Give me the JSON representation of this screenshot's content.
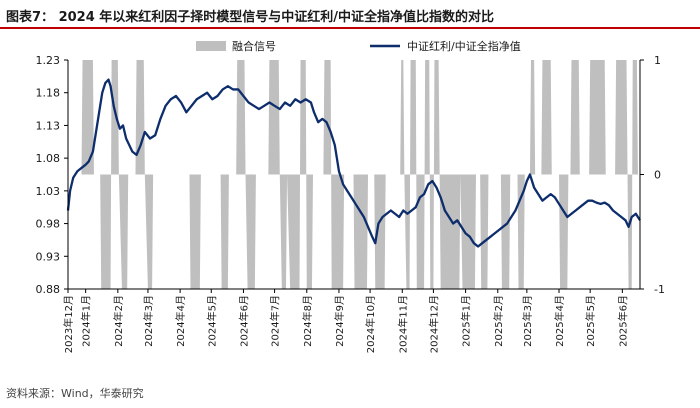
{
  "title": "图表7：  2024 年以来红利因子择时模型信号与中证红利/中证全指净值比指数的对比",
  "source": "资料来源：Wind，华泰研究",
  "chart_data": {
    "type": "line",
    "legend_placement": "top",
    "series": [
      {
        "name": "融合信号",
        "kind": "area",
        "axis": "right",
        "color": "#bfbfbf",
        "points": [
          [
            "2023-12-15",
            0
          ],
          [
            "2023-12-28",
            0
          ],
          [
            "2023-12-29",
            1
          ],
          [
            "2024-01-08",
            1
          ],
          [
            "2024-01-09",
            0
          ],
          [
            "2024-01-15",
            0
          ],
          [
            "2024-01-16",
            -1
          ],
          [
            "2024-01-25",
            -1
          ],
          [
            "2024-01-26",
            1
          ],
          [
            "2024-02-01",
            1
          ],
          [
            "2024-02-02",
            0
          ],
          [
            "2024-02-05",
            -1
          ],
          [
            "2024-02-10",
            -1
          ],
          [
            "2024-02-11",
            0
          ],
          [
            "2024-02-18",
            0
          ],
          [
            "2024-02-19",
            1
          ],
          [
            "2024-02-26",
            1
          ],
          [
            "2024-02-27",
            0
          ],
          [
            "2024-03-01",
            -1
          ],
          [
            "2024-03-05",
            -1
          ],
          [
            "2024-03-06",
            0
          ],
          [
            "2024-04-10",
            0
          ],
          [
            "2024-04-11",
            -1
          ],
          [
            "2024-04-20",
            -1
          ],
          [
            "2024-04-21",
            0
          ],
          [
            "2024-05-10",
            0
          ],
          [
            "2024-05-11",
            -1
          ],
          [
            "2024-05-17",
            -1
          ],
          [
            "2024-05-18",
            0
          ],
          [
            "2024-05-25",
            0
          ],
          [
            "2024-05-26",
            1
          ],
          [
            "2024-06-02",
            1
          ],
          [
            "2024-06-03",
            0
          ],
          [
            "2024-06-05",
            -1
          ],
          [
            "2024-06-12",
            -1
          ],
          [
            "2024-06-13",
            0
          ],
          [
            "2024-06-25",
            0
          ],
          [
            "2024-06-26",
            1
          ],
          [
            "2024-07-05",
            1
          ],
          [
            "2024-07-06",
            0
          ],
          [
            "2024-07-08",
            -1
          ],
          [
            "2024-07-12",
            -1
          ],
          [
            "2024-07-13",
            0
          ],
          [
            "2024-07-16",
            -1
          ],
          [
            "2024-07-25",
            -1
          ],
          [
            "2024-07-26",
            1
          ],
          [
            "2024-07-31",
            1
          ],
          [
            "2024-08-01",
            -1
          ],
          [
            "2024-08-06",
            -1
          ],
          [
            "2024-08-07",
            0
          ],
          [
            "2024-08-17",
            0
          ],
          [
            "2024-08-18",
            1
          ],
          [
            "2024-08-24",
            1
          ],
          [
            "2024-08-25",
            -1
          ],
          [
            "2024-09-05",
            -1
          ],
          [
            "2024-09-06",
            0
          ],
          [
            "2024-09-15",
            0
          ],
          [
            "2024-09-16",
            -1
          ],
          [
            "2024-09-28",
            -1
          ],
          [
            "2024-09-29",
            0
          ],
          [
            "2024-10-05",
            0
          ],
          [
            "2024-10-06",
            -1
          ],
          [
            "2024-10-15",
            -1
          ],
          [
            "2024-10-16",
            0
          ],
          [
            "2024-10-30",
            0
          ],
          [
            "2024-10-31",
            1
          ],
          [
            "2024-11-02",
            1
          ],
          [
            "2024-11-03",
            0
          ],
          [
            "2024-11-05",
            -1
          ],
          [
            "2024-11-08",
            -1
          ],
          [
            "2024-11-09",
            1
          ],
          [
            "2024-11-14",
            1
          ],
          [
            "2024-11-15",
            -1
          ],
          [
            "2024-11-22",
            -1
          ],
          [
            "2024-11-23",
            1
          ],
          [
            "2024-11-27",
            1
          ],
          [
            "2024-11-28",
            -1
          ],
          [
            "2024-12-01",
            -1
          ],
          [
            "2024-12-02",
            1
          ],
          [
            "2024-12-06",
            1
          ],
          [
            "2024-12-07",
            0
          ],
          [
            "2024-12-08",
            -1
          ],
          [
            "2024-12-26",
            -1
          ],
          [
            "2024-12-27",
            0
          ],
          [
            "2024-12-29",
            -1
          ],
          [
            "2025-01-10",
            -1
          ],
          [
            "2025-01-11",
            0
          ],
          [
            "2025-01-15",
            0
          ],
          [
            "2025-01-16",
            -1
          ],
          [
            "2025-01-22",
            -1
          ],
          [
            "2025-01-23",
            0
          ],
          [
            "2025-02-04",
            0
          ],
          [
            "2025-02-05",
            -1
          ],
          [
            "2025-02-12",
            -1
          ],
          [
            "2025-02-13",
            0
          ],
          [
            "2025-02-20",
            0
          ],
          [
            "2025-02-21",
            -1
          ],
          [
            "2025-02-26",
            -1
          ],
          [
            "2025-02-27",
            0
          ],
          [
            "2025-03-04",
            0
          ],
          [
            "2025-03-05",
            1
          ],
          [
            "2025-03-08",
            1
          ],
          [
            "2025-03-09",
            0
          ],
          [
            "2025-03-15",
            0
          ],
          [
            "2025-03-16",
            1
          ],
          [
            "2025-03-24",
            1
          ],
          [
            "2025-03-25",
            0
          ],
          [
            "2025-04-01",
            0
          ],
          [
            "2025-04-02",
            -1
          ],
          [
            "2025-04-09",
            -1
          ],
          [
            "2025-04-10",
            0
          ],
          [
            "2025-04-12",
            0
          ],
          [
            "2025-04-13",
            1
          ],
          [
            "2025-04-20",
            1
          ],
          [
            "2025-04-21",
            0
          ],
          [
            "2025-04-30",
            0
          ],
          [
            "2025-05-01",
            1
          ],
          [
            "2025-05-15",
            1
          ],
          [
            "2025-05-16",
            0
          ],
          [
            "2025-05-25",
            0
          ],
          [
            "2025-05-26",
            1
          ],
          [
            "2025-06-05",
            1
          ],
          [
            "2025-06-06",
            0
          ],
          [
            "2025-06-07",
            -1
          ],
          [
            "2025-06-10",
            -1
          ],
          [
            "2025-06-11",
            1
          ],
          [
            "2025-06-15",
            1
          ],
          [
            "2025-06-16",
            0
          ],
          [
            "2025-06-18",
            0
          ]
        ]
      },
      {
        "name": "中证红利/中证全指净值",
        "kind": "line",
        "axis": "left",
        "color": "#0d2d6c",
        "points": [
          [
            "2023-12-15",
            1.0
          ],
          [
            "2023-12-17",
            1.03
          ],
          [
            "2023-12-20",
            1.05
          ],
          [
            "2023-12-24",
            1.06
          ],
          [
            "2023-12-28",
            1.065
          ],
          [
            "2024-01-01",
            1.07
          ],
          [
            "2024-01-04",
            1.075
          ],
          [
            "2024-01-08",
            1.09
          ],
          [
            "2024-01-11",
            1.12
          ],
          [
            "2024-01-14",
            1.15
          ],
          [
            "2024-01-17",
            1.18
          ],
          [
            "2024-01-20",
            1.195
          ],
          [
            "2024-01-23",
            1.2
          ],
          [
            "2024-01-25",
            1.19
          ],
          [
            "2024-01-28",
            1.16
          ],
          [
            "2024-01-31",
            1.14
          ],
          [
            "2024-02-03",
            1.125
          ],
          [
            "2024-02-06",
            1.13
          ],
          [
            "2024-02-09",
            1.11
          ],
          [
            "2024-02-12",
            1.1
          ],
          [
            "2024-02-15",
            1.09
          ],
          [
            "2024-02-19",
            1.085
          ],
          [
            "2024-02-23",
            1.1
          ],
          [
            "2024-02-27",
            1.12
          ],
          [
            "2024-03-03",
            1.11
          ],
          [
            "2024-03-08",
            1.115
          ],
          [
            "2024-03-13",
            1.14
          ],
          [
            "2024-03-18",
            1.16
          ],
          [
            "2024-03-23",
            1.17
          ],
          [
            "2024-03-28",
            1.175
          ],
          [
            "2024-04-02",
            1.165
          ],
          [
            "2024-04-07",
            1.15
          ],
          [
            "2024-04-12",
            1.16
          ],
          [
            "2024-04-17",
            1.17
          ],
          [
            "2024-04-22",
            1.175
          ],
          [
            "2024-04-27",
            1.18
          ],
          [
            "2024-05-02",
            1.17
          ],
          [
            "2024-05-07",
            1.175
          ],
          [
            "2024-05-12",
            1.185
          ],
          [
            "2024-05-17",
            1.19
          ],
          [
            "2024-05-22",
            1.185
          ],
          [
            "2024-05-27",
            1.185
          ],
          [
            "2024-06-01",
            1.175
          ],
          [
            "2024-06-06",
            1.165
          ],
          [
            "2024-06-11",
            1.16
          ],
          [
            "2024-06-16",
            1.155
          ],
          [
            "2024-06-21",
            1.16
          ],
          [
            "2024-06-26",
            1.165
          ],
          [
            "2024-07-01",
            1.16
          ],
          [
            "2024-07-06",
            1.155
          ],
          [
            "2024-07-11",
            1.165
          ],
          [
            "2024-07-16",
            1.16
          ],
          [
            "2024-07-21",
            1.17
          ],
          [
            "2024-07-26",
            1.165
          ],
          [
            "2024-07-31",
            1.17
          ],
          [
            "2024-08-05",
            1.165
          ],
          [
            "2024-08-08",
            1.15
          ],
          [
            "2024-08-12",
            1.135
          ],
          [
            "2024-08-16",
            1.14
          ],
          [
            "2024-08-20",
            1.135
          ],
          [
            "2024-08-24",
            1.12
          ],
          [
            "2024-08-28",
            1.1
          ],
          [
            "2024-09-01",
            1.06
          ],
          [
            "2024-09-05",
            1.04
          ],
          [
            "2024-09-09",
            1.03
          ],
          [
            "2024-09-13",
            1.02
          ],
          [
            "2024-09-17",
            1.01
          ],
          [
            "2024-09-21",
            1.0
          ],
          [
            "2024-09-25",
            0.99
          ],
          [
            "2024-09-29",
            0.975
          ],
          [
            "2024-10-03",
            0.96
          ],
          [
            "2024-10-06",
            0.95
          ],
          [
            "2024-10-09",
            0.98
          ],
          [
            "2024-10-13",
            0.99
          ],
          [
            "2024-10-17",
            0.995
          ],
          [
            "2024-10-21",
            1.0
          ],
          [
            "2024-10-25",
            0.995
          ],
          [
            "2024-10-29",
            0.99
          ],
          [
            "2024-11-02",
            1.0
          ],
          [
            "2024-11-06",
            0.995
          ],
          [
            "2024-11-10",
            1.0
          ],
          [
            "2024-11-14",
            1.005
          ],
          [
            "2024-11-18",
            1.02
          ],
          [
            "2024-11-22",
            1.025
          ],
          [
            "2024-11-26",
            1.04
          ],
          [
            "2024-11-30",
            1.045
          ],
          [
            "2024-12-04",
            1.035
          ],
          [
            "2024-12-08",
            1.02
          ],
          [
            "2024-12-12",
            1.0
          ],
          [
            "2024-12-16",
            0.99
          ],
          [
            "2024-12-20",
            0.98
          ],
          [
            "2024-12-24",
            0.985
          ],
          [
            "2024-12-28",
            0.975
          ],
          [
            "2025-01-01",
            0.965
          ],
          [
            "2025-01-05",
            0.96
          ],
          [
            "2025-01-09",
            0.95
          ],
          [
            "2025-01-13",
            0.945
          ],
          [
            "2025-01-17",
            0.95
          ],
          [
            "2025-01-21",
            0.955
          ],
          [
            "2025-01-25",
            0.96
          ],
          [
            "2025-01-29",
            0.965
          ],
          [
            "2025-02-02",
            0.97
          ],
          [
            "2025-02-06",
            0.975
          ],
          [
            "2025-02-10",
            0.98
          ],
          [
            "2025-02-14",
            0.99
          ],
          [
            "2025-02-18",
            1.0
          ],
          [
            "2025-02-22",
            1.015
          ],
          [
            "2025-02-26",
            1.03
          ],
          [
            "2025-03-01",
            1.045
          ],
          [
            "2025-03-04",
            1.055
          ],
          [
            "2025-03-08",
            1.035
          ],
          [
            "2025-03-12",
            1.025
          ],
          [
            "2025-03-16",
            1.015
          ],
          [
            "2025-03-20",
            1.02
          ],
          [
            "2025-03-24",
            1.025
          ],
          [
            "2025-03-28",
            1.02
          ],
          [
            "2025-04-01",
            1.01
          ],
          [
            "2025-04-05",
            1.0
          ],
          [
            "2025-04-09",
            0.99
          ],
          [
            "2025-04-13",
            0.995
          ],
          [
            "2025-04-17",
            1.0
          ],
          [
            "2025-04-21",
            1.005
          ],
          [
            "2025-04-25",
            1.01
          ],
          [
            "2025-04-29",
            1.015
          ],
          [
            "2025-05-03",
            1.015
          ],
          [
            "2025-05-07",
            1.012
          ],
          [
            "2025-05-11",
            1.01
          ],
          [
            "2025-05-15",
            1.012
          ],
          [
            "2025-05-19",
            1.008
          ],
          [
            "2025-05-23",
            1.0
          ],
          [
            "2025-05-27",
            0.995
          ],
          [
            "2025-05-31",
            0.99
          ],
          [
            "2025-06-04",
            0.985
          ],
          [
            "2025-06-07",
            0.975
          ],
          [
            "2025-06-10",
            0.99
          ],
          [
            "2025-06-14",
            0.995
          ],
          [
            "2025-06-18",
            0.985
          ]
        ]
      }
    ],
    "x_range": [
      "2023-12-15",
      "2025-06-18"
    ],
    "x_ticks": [
      "2023年12月",
      "2024年1月",
      "2024年2月",
      "2024年3月",
      "2024年4月",
      "2024年5月",
      "2024年6月",
      "2024年7月",
      "2024年8月",
      "2024年9月",
      "2024年10月",
      "2024年11月",
      "2024年12月",
      "2025年1月",
      "2025年2月",
      "2025年3月",
      "2025年4月",
      "2025年5月",
      "2025年6月"
    ],
    "x_tick_dates": [
      "2023-12-01",
      "2024-01-01",
      "2024-02-01",
      "2024-03-01",
      "2024-04-01",
      "2024-05-01",
      "2024-06-01",
      "2024-07-01",
      "2024-08-01",
      "2024-09-01",
      "2024-10-01",
      "2024-11-01",
      "2024-12-01",
      "2025-01-01",
      "2025-02-01",
      "2025-03-01",
      "2025-04-01",
      "2025-05-01",
      "2025-06-01"
    ],
    "y_left": {
      "min": 0.88,
      "max": 1.23,
      "ticks": [
        "0.88",
        "0.93",
        "0.98",
        "1.03",
        "1.08",
        "1.13",
        "1.18",
        "1.23"
      ]
    },
    "y_right": {
      "min": -1,
      "max": 1,
      "ticks": [
        "-1",
        "0",
        "1"
      ]
    },
    "grid": false
  }
}
